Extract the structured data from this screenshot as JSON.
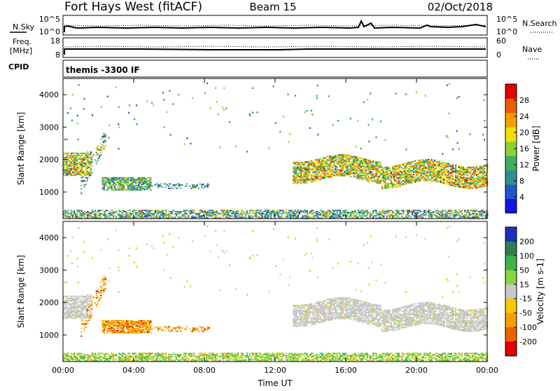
{
  "header": {
    "station": "Fort Hays West (fitACF)",
    "beam": "Beam 15",
    "date": "02/Oct/2018"
  },
  "ancillary": {
    "nsky_label": "N.Sky",
    "nsky_top": "10^5",
    "nsky_bottom": "10^0",
    "nsearch_label": "N.Search",
    "nsearch_top": "10^5",
    "nsearch_bottom": "10^0",
    "freq_label_1": "Freq.",
    "freq_label_2": "[MHz]",
    "freq_top": "18",
    "freq_bottom": "8",
    "nave_label": "Nave",
    "nave_top": "60",
    "nave_bottom": "0",
    "cpid_label": "CPID",
    "cpid_value": "themis -3300 IF"
  },
  "chart_data": [
    {
      "type": "heatmap",
      "title": "",
      "xlabel": "",
      "ylabel": "Slant Range [km]",
      "x_ticks": [
        "00:00",
        "04:00",
        "08:00",
        "12:00",
        "16:00",
        "20:00",
        "00:00"
      ],
      "xlim_hours": [
        0,
        24
      ],
      "ylim": [
        180,
        4500
      ],
      "y_ticks": [
        1000,
        2000,
        3000,
        4000
      ],
      "colorbar": {
        "label": "Power [dB]",
        "ticks": [
          4,
          8,
          12,
          16,
          20,
          24,
          28
        ],
        "range": [
          0,
          32
        ],
        "colors": [
          "#1414e6",
          "#2058c8",
          "#2f8f8f",
          "#3fae5c",
          "#8bd13a",
          "#f5dd0c",
          "#f5a000",
          "#ef5a00",
          "#e00000"
        ]
      },
      "regions": [
        {
          "name": "early-band",
          "t": [
            0.0,
            1.6
          ],
          "r": [
            1500,
            2200
          ],
          "level": "high"
        },
        {
          "name": "arc",
          "t": [
            1.0,
            2.4
          ],
          "r": [
            1000,
            2900
          ],
          "level": "mixed"
        },
        {
          "name": "blob",
          "t": [
            2.2,
            5.0
          ],
          "r": [
            1050,
            1450
          ],
          "level": "mid"
        },
        {
          "name": "tail",
          "t": [
            5.0,
            8.3
          ],
          "r": [
            1100,
            1250
          ],
          "level": "low"
        },
        {
          "name": "ground",
          "t": [
            0.0,
            24.0
          ],
          "r": [
            180,
            420
          ],
          "level": "mixed"
        },
        {
          "name": "evening-band",
          "t": [
            13.0,
            24.0
          ],
          "r": [
            1200,
            2300
          ],
          "level": "high"
        }
      ]
    },
    {
      "type": "heatmap",
      "title": "",
      "xlabel": "Time UT",
      "ylabel": "Slant Range [km]",
      "x_ticks": [
        "00:00",
        "04:00",
        "08:00",
        "12:00",
        "16:00",
        "20:00",
        "00:00"
      ],
      "xlim_hours": [
        0,
        24
      ],
      "ylim": [
        180,
        4500
      ],
      "y_ticks": [
        1000,
        2000,
        3000,
        4000
      ],
      "colorbar": {
        "label": "Velocity [m s-1]",
        "ticks": [
          "200",
          "100",
          "50",
          "15",
          "-15",
          "-50",
          "-100",
          "-200"
        ],
        "colors": [
          "#1d2fb8",
          "#2d7f4e",
          "#3db44a",
          "#8ad53d",
          "#c8c8c8",
          "#f5c800",
          "#f5a000",
          "#ef6000",
          "#e00000"
        ]
      },
      "regions": [
        {
          "name": "early-band",
          "t": [
            0.0,
            1.6
          ],
          "r": [
            1500,
            2200
          ],
          "level": "ground-scatter"
        },
        {
          "name": "arc",
          "t": [
            1.0,
            2.4
          ],
          "r": [
            1000,
            2900
          ],
          "level": "negative"
        },
        {
          "name": "blob",
          "t": [
            2.2,
            5.0
          ],
          "r": [
            1050,
            1450
          ],
          "level": "negative"
        },
        {
          "name": "tail",
          "t": [
            5.0,
            8.3
          ],
          "r": [
            1100,
            1250
          ],
          "level": "negative"
        },
        {
          "name": "ground",
          "t": [
            0.0,
            24.0
          ],
          "r": [
            180,
            420
          ],
          "level": "mixed"
        },
        {
          "name": "evening-band",
          "t": [
            13.0,
            24.0
          ],
          "r": [
            1200,
            2300
          ],
          "level": "ground-scatter"
        }
      ]
    }
  ]
}
